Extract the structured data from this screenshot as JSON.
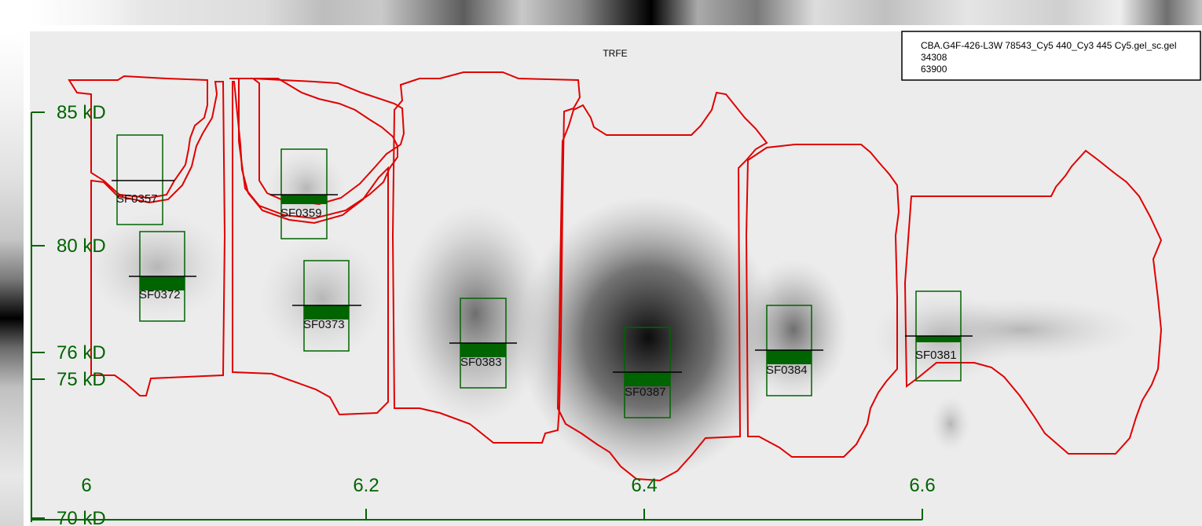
{
  "title": "TRFE",
  "legend": {
    "filename": "CBA.G4F-426-L3W 78543_Cy5 440_Cy3 445 Cy5.gel_sc.gel",
    "value_1": "34308",
    "value_2": "63900"
  },
  "colors": {
    "axis": "#006400",
    "spot_box": "#006400",
    "region_outline": "#e00000",
    "legend_border": "#000000"
  },
  "axes": {
    "x_label_text": [
      "6",
      "6.2",
      "6.4",
      "6.6"
    ],
    "y_label_text": [
      "85 kD",
      "80 kD",
      "76 kD",
      "75 kD",
      "70 kD"
    ]
  },
  "spots": [
    {
      "id": "SF0357"
    },
    {
      "id": "SF0359"
    },
    {
      "id": "SF0372"
    },
    {
      "id": "SF0373"
    },
    {
      "id": "SF0383"
    },
    {
      "id": "SF0387"
    },
    {
      "id": "SF0384"
    },
    {
      "id": "SF0381"
    }
  ]
}
